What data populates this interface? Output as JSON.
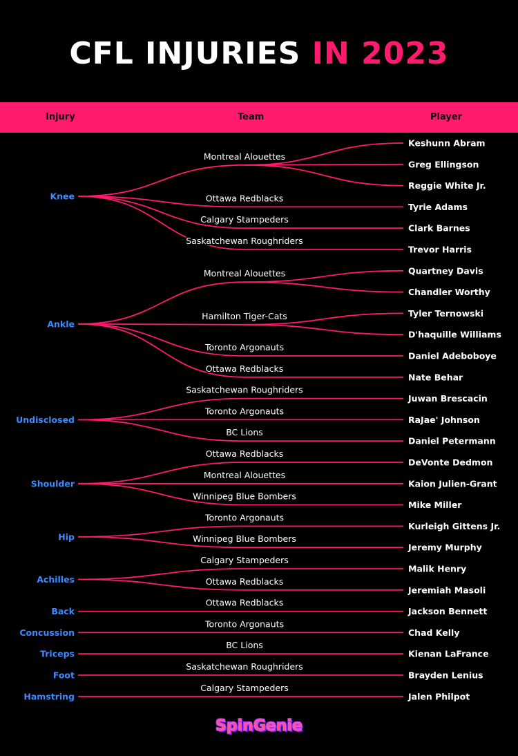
{
  "title": {
    "main": "CFL INJURIES",
    "accent": "IN 2023"
  },
  "header": {
    "injury": "Injury",
    "team": "Team",
    "player": "Player"
  },
  "colors": {
    "accent": "#ff1a6e",
    "injury_text": "#3d8bff",
    "text": "#ffffff",
    "background": "#000000"
  },
  "injuries": [
    {
      "name": "Knee",
      "teams": [
        {
          "name": "Montreal Alouettes",
          "players": [
            "Keshunn Abram",
            "Greg Ellingson",
            "Reggie White Jr."
          ]
        },
        {
          "name": "Ottawa Redblacks",
          "players": [
            "Tyrie Adams"
          ]
        },
        {
          "name": "Calgary Stampeders",
          "players": [
            "Clark Barnes"
          ]
        },
        {
          "name": "Saskatchewan Roughriders",
          "players": [
            "Trevor Harris"
          ]
        }
      ]
    },
    {
      "name": "Ankle",
      "teams": [
        {
          "name": "Montreal Alouettes",
          "players": [
            "Quartney Davis",
            "Chandler Worthy"
          ]
        },
        {
          "name": "Hamilton Tiger-Cats",
          "players": [
            "Tyler Ternowski",
            "D'haquille Williams"
          ]
        },
        {
          "name": "Toronto Argonauts",
          "players": [
            "Daniel Adeboboye"
          ]
        },
        {
          "name": "Ottawa Redblacks",
          "players": [
            "Nate Behar"
          ]
        }
      ]
    },
    {
      "name": "Undisclosed",
      "teams": [
        {
          "name": "Saskatchewan Roughriders",
          "players": [
            "Juwan Brescacin"
          ]
        },
        {
          "name": "Toronto Argonauts",
          "players": [
            "RaJae' Johnson"
          ]
        },
        {
          "name": "BC Lions",
          "players": [
            "Daniel Petermann"
          ]
        }
      ]
    },
    {
      "name": "Shoulder",
      "teams": [
        {
          "name": "Ottawa Redblacks",
          "players": [
            "DeVonte Dedmon"
          ]
        },
        {
          "name": "Montreal Alouettes",
          "players": [
            "Kaion Julien-Grant"
          ]
        },
        {
          "name": "Winnipeg Blue Bombers",
          "players": [
            "Mike Miller"
          ]
        }
      ]
    },
    {
      "name": "Hip",
      "teams": [
        {
          "name": "Toronto Argonauts",
          "players": [
            "Kurleigh Gittens Jr."
          ]
        },
        {
          "name": "Winnipeg Blue Bombers",
          "players": [
            "Jeremy Murphy"
          ]
        }
      ]
    },
    {
      "name": "Achilles",
      "teams": [
        {
          "name": "Calgary Stampeders",
          "players": [
            "Malik Henry"
          ]
        },
        {
          "name": "Ottawa Redblacks",
          "players": [
            "Jeremiah Masoli"
          ]
        }
      ]
    },
    {
      "name": "Back",
      "teams": [
        {
          "name": "Ottawa Redblacks",
          "players": [
            "Jackson Bennett"
          ]
        }
      ]
    },
    {
      "name": "Concussion",
      "teams": [
        {
          "name": "Toronto Argonauts",
          "players": [
            "Chad Kelly"
          ]
        }
      ]
    },
    {
      "name": "Triceps",
      "teams": [
        {
          "name": "BC Lions",
          "players": [
            "Kienan LaFrance"
          ]
        }
      ]
    },
    {
      "name": "Foot",
      "teams": [
        {
          "name": "Saskatchewan Roughriders",
          "players": [
            "Brayden Lenius"
          ]
        }
      ]
    },
    {
      "name": "Hamstring",
      "teams": [
        {
          "name": "Calgary Stampeders",
          "players": [
            "Jalen Philpot"
          ]
        }
      ]
    }
  ],
  "logo": {
    "text": "SpinGenie"
  }
}
